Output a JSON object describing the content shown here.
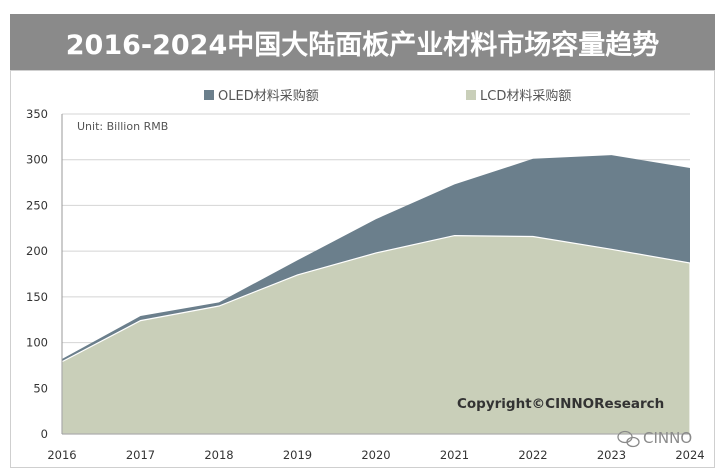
{
  "title": "2016-2024中国大陆面板产业材料市场容量趋势",
  "unit_note": "Unit:  Billion RMB",
  "copyright": "Copyright©CINNOResearch",
  "watermark": "CINNO",
  "colors": {
    "title_bar": "#8a8a8a",
    "oled": "#6b7f8c",
    "lcd": "#c9cfb9",
    "grid": "#d4d4d4"
  },
  "chart_data": {
    "type": "area",
    "stacked": true,
    "x": [
      "2016",
      "2017",
      "2018",
      "2019",
      "2020",
      "2021",
      "2022",
      "2023",
      "2024"
    ],
    "series": [
      {
        "name": "LCD材料采购额",
        "color": "#c9cfb9",
        "values": [
          79,
          124,
          140,
          174,
          198,
          217,
          216,
          202,
          187
        ]
      },
      {
        "name": "OLED材料采购额",
        "color": "#6b7f8c",
        "values": [
          3,
          5,
          4,
          16,
          37,
          56,
          85,
          103,
          104
        ]
      }
    ],
    "ylim": [
      0,
      350
    ],
    "yticks": [
      "0",
      "50",
      "100",
      "150",
      "200",
      "250",
      "300",
      "350"
    ],
    "grid": true,
    "legend_position": "top-center"
  }
}
